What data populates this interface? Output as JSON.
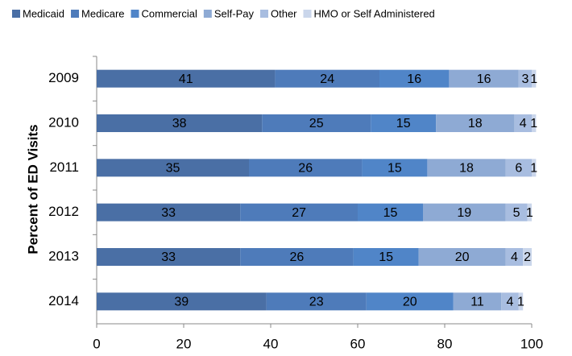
{
  "chart_data": {
    "type": "stacked-bar-horizontal",
    "y_label": "Percent of ED Visits",
    "categories": [
      "2009",
      "2010",
      "2011",
      "2012",
      "2013",
      "2014"
    ],
    "series": [
      {
        "name": "Medicaid",
        "color": "#4a6fa5",
        "values": [
          41,
          38,
          35,
          33,
          33,
          39
        ]
      },
      {
        "name": "Medicare",
        "color": "#4e7bba",
        "values": [
          24,
          25,
          26,
          27,
          26,
          23
        ]
      },
      {
        "name": "Commercial",
        "color": "#5085c8",
        "values": [
          16,
          15,
          15,
          15,
          15,
          20
        ]
      },
      {
        "name": "Self-Pay",
        "color": "#8eaad4",
        "values": [
          16,
          18,
          18,
          19,
          20,
          11
        ]
      },
      {
        "name": "Other",
        "color": "#a8bde0",
        "values": [
          3,
          4,
          6,
          5,
          4,
          4
        ]
      },
      {
        "name": "HMO or Self Administered",
        "color": "#cad6eb",
        "values": [
          1,
          1,
          1,
          1,
          2,
          1
        ]
      }
    ],
    "xlim": [
      0,
      100
    ],
    "xticks": [
      0,
      20,
      40,
      60,
      80,
      100
    ],
    "legend": "top"
  }
}
